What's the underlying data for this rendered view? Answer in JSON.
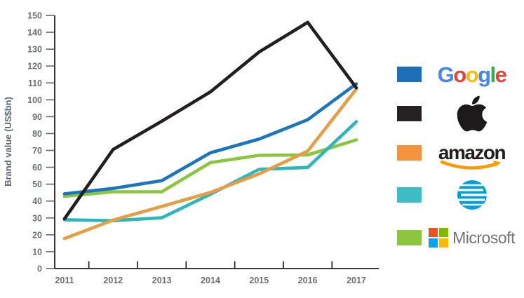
{
  "chart_data": {
    "type": "line",
    "title": "",
    "xlabel": "",
    "ylabel": "Brand value (US$bn)",
    "ylim": [
      0,
      150
    ],
    "y_tick_step": 10,
    "y_ticks": [
      0,
      10,
      20,
      30,
      40,
      50,
      60,
      70,
      80,
      90,
      100,
      110,
      120,
      130,
      140,
      150
    ],
    "categories": [
      "2011",
      "2012",
      "2013",
      "2014",
      "2015",
      "2016",
      "2017"
    ],
    "series": [
      {
        "name": "Google",
        "color": "#1b75bc",
        "values": [
          44.3,
          47.5,
          52.1,
          68.6,
          76.7,
          88.2,
          109.5
        ]
      },
      {
        "name": "Apple",
        "color": "#231f20",
        "values": [
          29.5,
          70.6,
          87.3,
          104.7,
          128.3,
          145.9,
          107.1
        ]
      },
      {
        "name": "Amazon",
        "color": "#e69e45",
        "values": [
          17.8,
          28.7,
          36.8,
          45.1,
          56.1,
          69.6,
          106.4
        ]
      },
      {
        "name": "AT&T",
        "color": "#2eb5bd",
        "values": [
          28.9,
          28.4,
          30.1,
          44.0,
          58.8,
          59.9,
          87.0
        ]
      },
      {
        "name": "Microsoft",
        "color": "#8cc63e",
        "values": [
          42.8,
          45.5,
          45.5,
          62.8,
          67.1,
          67.3,
          76.3
        ]
      }
    ],
    "draw_order": [
      4,
      3,
      2,
      0,
      1
    ],
    "grid": false,
    "legend_position": "right"
  },
  "legend": {
    "items": [
      {
        "brand": "Google",
        "swatch_color": "#1e6fb8"
      },
      {
        "brand": "Apple",
        "swatch_color": "#262223"
      },
      {
        "brand": "Amazon",
        "swatch_color": "#f5923e"
      },
      {
        "brand": "AT&T",
        "swatch_color": "#3fbdc5"
      },
      {
        "brand": "Microsoft",
        "swatch_color": "#8cc63e"
      }
    ],
    "google_letters": [
      {
        "ch": "G",
        "color": "#4285F4"
      },
      {
        "ch": "o",
        "color": "#EA4335"
      },
      {
        "ch": "o",
        "color": "#FBBC05"
      },
      {
        "ch": "g",
        "color": "#4285F4"
      },
      {
        "ch": "l",
        "color": "#34A853"
      },
      {
        "ch": "e",
        "color": "#EA4335"
      }
    ],
    "amazon_text": "amazon",
    "amazon_smile_color": "#FF9900",
    "apple_logo_color": "#1d1a1b",
    "att_globe_color": "#009FDB",
    "microsoft_text": "Microsoft",
    "microsoft_squares": [
      "#F25022",
      "#7FBA00",
      "#00A4EF",
      "#FFB900"
    ]
  }
}
